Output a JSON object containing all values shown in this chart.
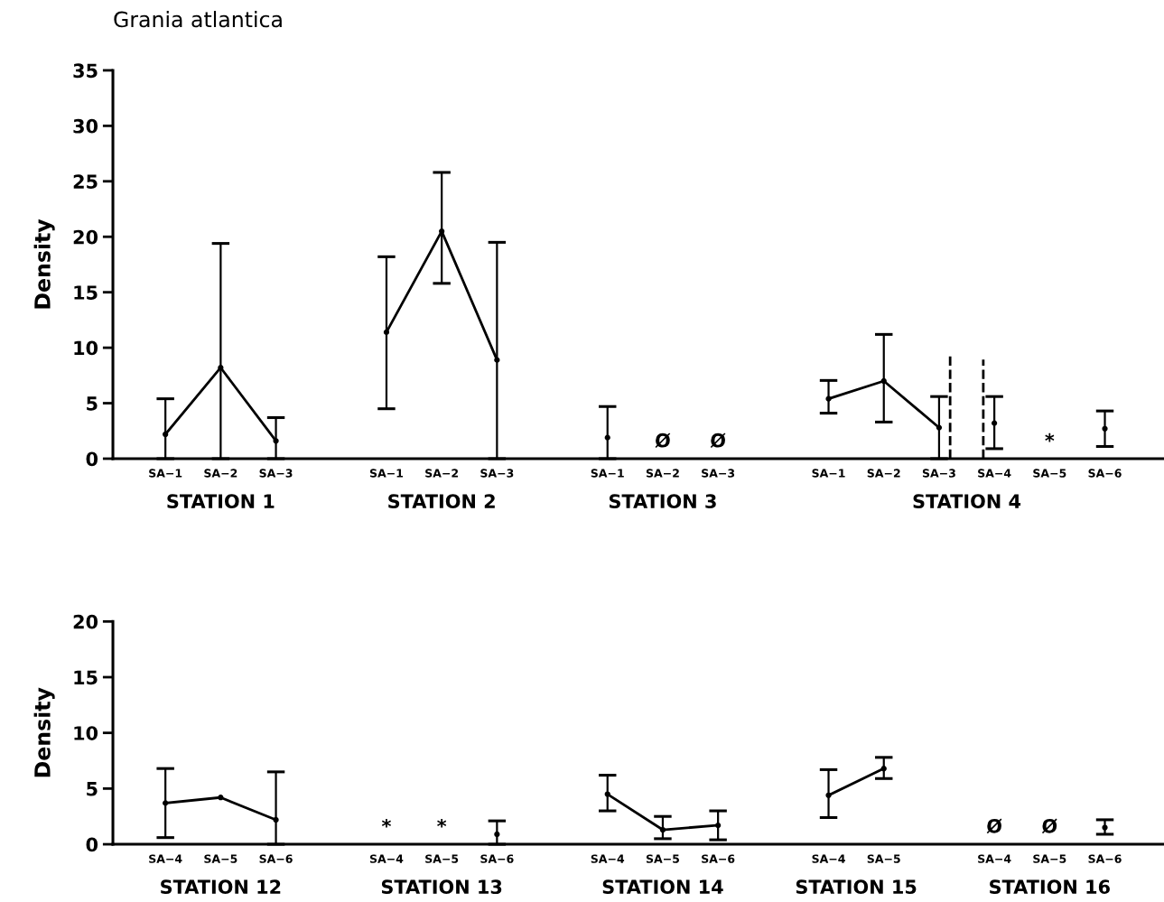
{
  "chart_data": [
    {
      "type": "line",
      "title": "Grania atlantica",
      "ylabel": "Density",
      "annotations": [
        "STATION 1",
        "STATION 2",
        "STATION 3",
        "STATION 4"
      ],
      "categories": [
        "SA−1",
        "SA−2",
        "SA−3",
        null,
        "SA−1",
        "SA−2",
        "SA−3",
        null,
        "SA−1",
        "SA−2",
        "SA−3",
        null,
        "SA−1",
        "SA−2",
        "SA−3",
        "SA−4",
        "SA−5",
        "SA−6"
      ],
      "ylim": [
        0,
        35
      ],
      "yticks": [
        0,
        5,
        10,
        15,
        20,
        25,
        30,
        35
      ],
      "grid": false,
      "legend": false,
      "marker": "circle",
      "line_style": "solid",
      "series": [
        {
          "color": "#000000",
          "values": [
            2.2,
            8.2,
            1.6,
            null,
            null,
            null,
            null,
            null,
            null,
            null,
            null,
            null,
            null,
            null,
            null,
            null,
            null,
            null
          ],
          "errors": [
            [
              0,
              5.4
            ],
            [
              0,
              19.4
            ],
            [
              0,
              3.7
            ],
            null,
            null,
            null,
            null,
            null,
            null,
            null,
            null,
            null,
            null,
            null,
            null,
            null,
            null,
            null
          ]
        },
        {
          "color": "#000000",
          "values": [
            null,
            null,
            null,
            null,
            11.4,
            20.5,
            8.9,
            null,
            null,
            null,
            null,
            null,
            null,
            null,
            null,
            null,
            null,
            null
          ],
          "errors": [
            null,
            null,
            null,
            null,
            [
              4.5,
              18.2
            ],
            [
              15.8,
              25.8
            ],
            [
              0,
              19.5
            ],
            null,
            null,
            null,
            null,
            null,
            null,
            null,
            null,
            null,
            null,
            null
          ]
        },
        {
          "type": "scatter",
          "color": "#000000",
          "values": [
            null,
            null,
            null,
            null,
            null,
            null,
            null,
            null,
            1.9,
            null,
            null,
            null,
            null,
            null,
            null,
            null,
            null,
            null
          ],
          "errors": [
            null,
            null,
            null,
            null,
            null,
            null,
            null,
            null,
            [
              0,
              4.7
            ],
            null,
            null,
            null,
            null,
            null,
            null,
            null,
            null,
            null
          ],
          "value_labels": [
            null,
            null,
            null,
            null,
            null,
            null,
            null,
            null,
            null,
            "Ø",
            "Ø",
            null,
            null,
            null,
            null,
            null,
            null,
            null
          ]
        },
        {
          "color": "#000000",
          "values": [
            null,
            null,
            null,
            null,
            null,
            null,
            null,
            null,
            null,
            null,
            null,
            null,
            5.4,
            7.0,
            2.8,
            null,
            null,
            null
          ],
          "errors": [
            null,
            null,
            null,
            null,
            null,
            null,
            null,
            null,
            null,
            null,
            null,
            null,
            [
              4.1,
              7.05
            ],
            [
              3.3,
              11.2
            ],
            [
              0,
              5.6
            ],
            null,
            null,
            null
          ]
        },
        {
          "type": "scatter",
          "color": "#000000",
          "values": [
            null,
            null,
            null,
            null,
            null,
            null,
            null,
            null,
            null,
            null,
            null,
            null,
            null,
            null,
            null,
            3.2,
            null,
            2.7
          ],
          "errors": [
            null,
            null,
            null,
            null,
            null,
            null,
            null,
            null,
            null,
            null,
            null,
            null,
            null,
            null,
            null,
            [
              0.9,
              5.6
            ],
            null,
            [
              1.1,
              4.3
            ]
          ],
          "value_labels": [
            null,
            null,
            null,
            null,
            null,
            null,
            null,
            null,
            null,
            null,
            null,
            null,
            null,
            null,
            null,
            null,
            "*",
            null
          ]
        }
      ]
    },
    {
      "type": "line",
      "ylabel": "Density",
      "annotations": [
        "STATION 12",
        "STATION 13",
        "STATION 14",
        "STATION 15",
        "STATION 16"
      ],
      "categories": [
        "SA−4",
        "SA−5",
        "SA−6",
        null,
        "SA−4",
        "SA−5",
        "SA−6",
        null,
        "SA−4",
        "SA−5",
        "SA−6",
        null,
        "SA−4",
        "SA−5",
        null,
        "SA−4",
        "SA−5",
        "SA−6"
      ],
      "ylim": [
        0,
        20
      ],
      "yticks": [
        0,
        5,
        10,
        15,
        20
      ],
      "grid": false,
      "legend": false,
      "marker": "circle",
      "line_style": "solid",
      "series": [
        {
          "color": "#000000",
          "values": [
            3.7,
            4.2,
            2.2,
            null,
            null,
            null,
            null,
            null,
            null,
            null,
            null,
            null,
            null,
            null,
            null,
            null,
            null,
            null
          ],
          "errors": [
            [
              0.6,
              6.8
            ],
            null,
            [
              0,
              6.5
            ],
            null,
            null,
            null,
            null,
            null,
            null,
            null,
            null,
            null,
            null,
            null,
            null,
            null,
            null,
            null
          ]
        },
        {
          "type": "scatter",
          "color": "#000000",
          "values": [
            null,
            null,
            null,
            null,
            null,
            null,
            0.9,
            null,
            null,
            null,
            null,
            null,
            null,
            null,
            null,
            null,
            null,
            null
          ],
          "errors": [
            null,
            null,
            null,
            null,
            null,
            null,
            [
              0,
              2.1
            ],
            null,
            null,
            null,
            null,
            null,
            null,
            null,
            null,
            null,
            null,
            null
          ],
          "value_labels": [
            null,
            null,
            null,
            null,
            "*",
            "*",
            null,
            null,
            null,
            null,
            null,
            null,
            null,
            null,
            null,
            null,
            null,
            null
          ]
        },
        {
          "color": "#000000",
          "values": [
            null,
            null,
            null,
            null,
            null,
            null,
            null,
            null,
            4.5,
            1.3,
            1.7,
            null,
            null,
            null,
            null,
            null,
            null,
            null
          ],
          "errors": [
            null,
            null,
            null,
            null,
            null,
            null,
            null,
            null,
            [
              3.0,
              6.2
            ],
            [
              0.5,
              2.5
            ],
            [
              0.4,
              3.0
            ],
            null,
            null,
            null,
            null,
            null,
            null,
            null
          ]
        },
        {
          "color": "#000000",
          "values": [
            null,
            null,
            null,
            null,
            null,
            null,
            null,
            null,
            null,
            null,
            null,
            null,
            4.4,
            6.8,
            null,
            null,
            null,
            null
          ],
          "errors": [
            null,
            null,
            null,
            null,
            null,
            null,
            null,
            null,
            null,
            null,
            null,
            null,
            [
              2.4,
              6.7
            ],
            [
              5.9,
              7.8
            ],
            null,
            null,
            null,
            null
          ]
        },
        {
          "type": "scatter",
          "color": "#000000",
          "values": [
            null,
            null,
            null,
            null,
            null,
            null,
            null,
            null,
            null,
            null,
            null,
            null,
            null,
            null,
            null,
            null,
            null,
            1.5
          ],
          "errors": [
            null,
            null,
            null,
            null,
            null,
            null,
            null,
            null,
            null,
            null,
            null,
            null,
            null,
            null,
            null,
            null,
            null,
            [
              0.9,
              2.2
            ]
          ],
          "value_labels": [
            null,
            null,
            null,
            null,
            null,
            null,
            null,
            null,
            null,
            null,
            null,
            null,
            null,
            null,
            null,
            "Ø",
            "Ø",
            null
          ]
        }
      ]
    }
  ]
}
